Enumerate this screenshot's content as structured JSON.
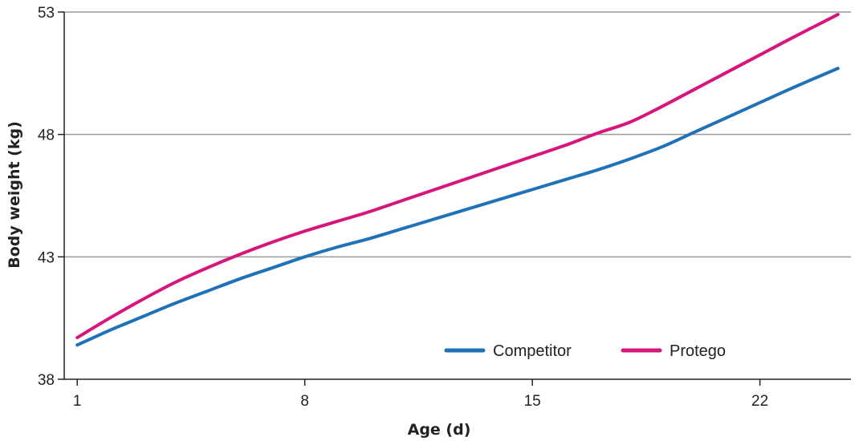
{
  "chart_data": {
    "type": "line",
    "title": "",
    "xlabel": "Age (d)",
    "ylabel": "Body weight (kg)",
    "xlim": [
      0.6,
      24.8
    ],
    "ylim": [
      38,
      53
    ],
    "xticks": [
      1,
      8,
      15,
      22
    ],
    "yticks": [
      38,
      43,
      48,
      53
    ],
    "grid": "horizontal",
    "legend_position": "bottom-right",
    "series": [
      {
        "name": "Competitor",
        "color": "#1f71b8",
        "x": [
          1,
          2,
          3,
          4,
          5,
          6,
          7,
          8,
          9,
          10,
          11,
          12,
          13,
          14,
          15,
          16,
          17,
          18,
          19,
          20,
          21,
          22,
          23,
          24.4
        ],
        "y": [
          39.4,
          40.0,
          40.55,
          41.1,
          41.6,
          42.1,
          42.55,
          43.0,
          43.4,
          43.75,
          44.15,
          44.55,
          44.95,
          45.35,
          45.75,
          46.15,
          46.55,
          47.0,
          47.5,
          48.1,
          48.7,
          49.3,
          49.9,
          50.7
        ]
      },
      {
        "name": "Protego",
        "color": "#d6157d",
        "x": [
          1,
          2,
          3,
          4,
          5,
          6,
          7,
          8,
          9,
          10,
          11,
          12,
          13,
          14,
          15,
          16,
          17,
          18,
          19,
          20,
          21,
          22,
          23,
          24.4
        ],
        "y": [
          39.7,
          40.5,
          41.25,
          41.95,
          42.55,
          43.1,
          43.6,
          44.05,
          44.45,
          44.85,
          45.3,
          45.75,
          46.2,
          46.65,
          47.1,
          47.55,
          48.05,
          48.5,
          49.15,
          49.85,
          50.55,
          51.25,
          51.95,
          52.9
        ]
      }
    ]
  }
}
